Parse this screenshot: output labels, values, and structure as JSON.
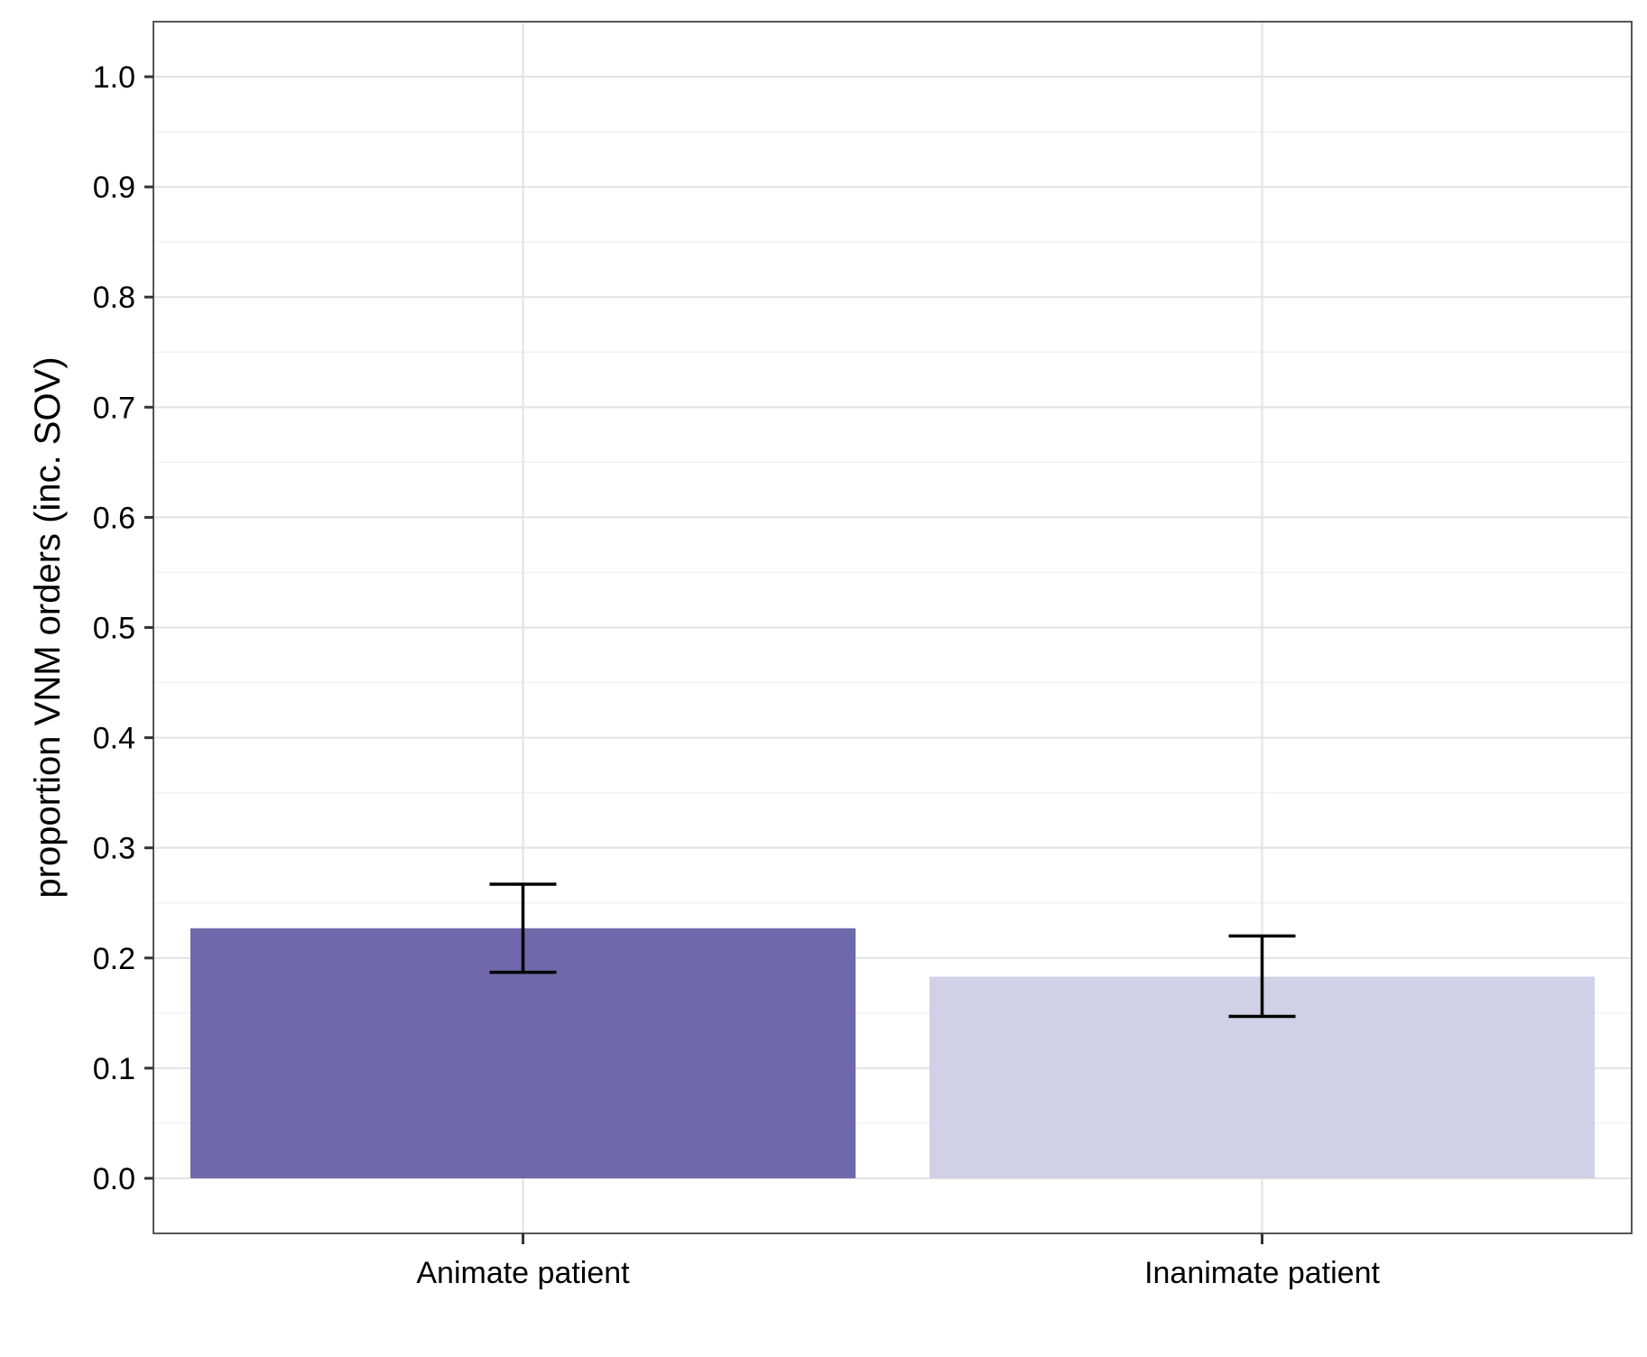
{
  "chart_data": {
    "type": "bar",
    "title": "",
    "xlabel": "",
    "ylabel": "proportion VNM orders (inc. SOV)",
    "categories": [
      "Animate patient",
      "Inanimate patient"
    ],
    "values": [
      0.227,
      0.183
    ],
    "error_bars": [
      {
        "lower": 0.187,
        "upper": 0.267
      },
      {
        "lower": 0.147,
        "upper": 0.22
      }
    ],
    "colors": [
      "#6F69AB",
      "#D0D0E6"
    ],
    "ylim": [
      -0.05,
      1.05
    ],
    "yticks": [
      "0.0",
      "0.1",
      "0.2",
      "0.3",
      "0.4",
      "0.5",
      "0.6",
      "0.7",
      "0.8",
      "0.9",
      "1.0"
    ],
    "grid": true,
    "legend": "none"
  }
}
